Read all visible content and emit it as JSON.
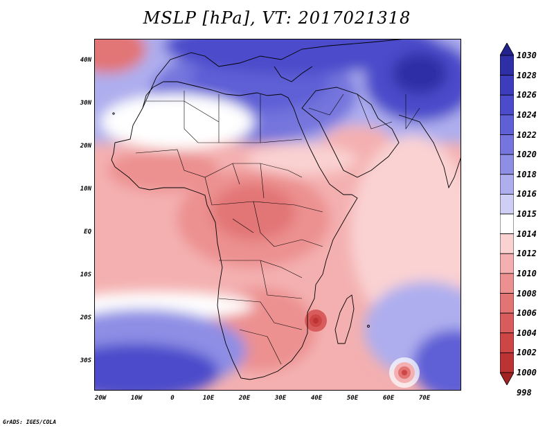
{
  "title": "MSLP [hPa], VT: 2017021318",
  "credit": "GrADS: IGES/COLA",
  "y_axis": [
    "40N",
    "30N",
    "20N",
    "10N",
    "EQ",
    "10S",
    "20S",
    "30S"
  ],
  "x_axis": [
    "20W",
    "10W",
    "0",
    "10E",
    "20E",
    "30E",
    "40E",
    "50E",
    "60E",
    "70E"
  ],
  "colorbar": {
    "levels": [
      "1030",
      "1028",
      "1026",
      "1024",
      "1022",
      "1020",
      "1018",
      "1016",
      "1015",
      "1014",
      "1012",
      "1010",
      "1008",
      "1006",
      "1004",
      "1002",
      "1000",
      "998"
    ],
    "colors": [
      "#23238f",
      "#2e2ea6",
      "#3c3cbc",
      "#4b4bcb",
      "#5f5fd6",
      "#7575dd",
      "#8e8ee5",
      "#aeaeee",
      "#cfcff6",
      "#ffffff",
      "#fad2d2",
      "#f4b0b0",
      "#ec9090",
      "#e27474",
      "#d95c5c",
      "#cc4646",
      "#bb3333",
      "#a32222"
    ]
  },
  "features": {
    "lows": [
      "mozambique-channel-low",
      "southern-indian-ocean-low"
    ],
    "highs": [
      "north-africa-high",
      "arabia-iran-high",
      "south-atlantic-high"
    ]
  }
}
